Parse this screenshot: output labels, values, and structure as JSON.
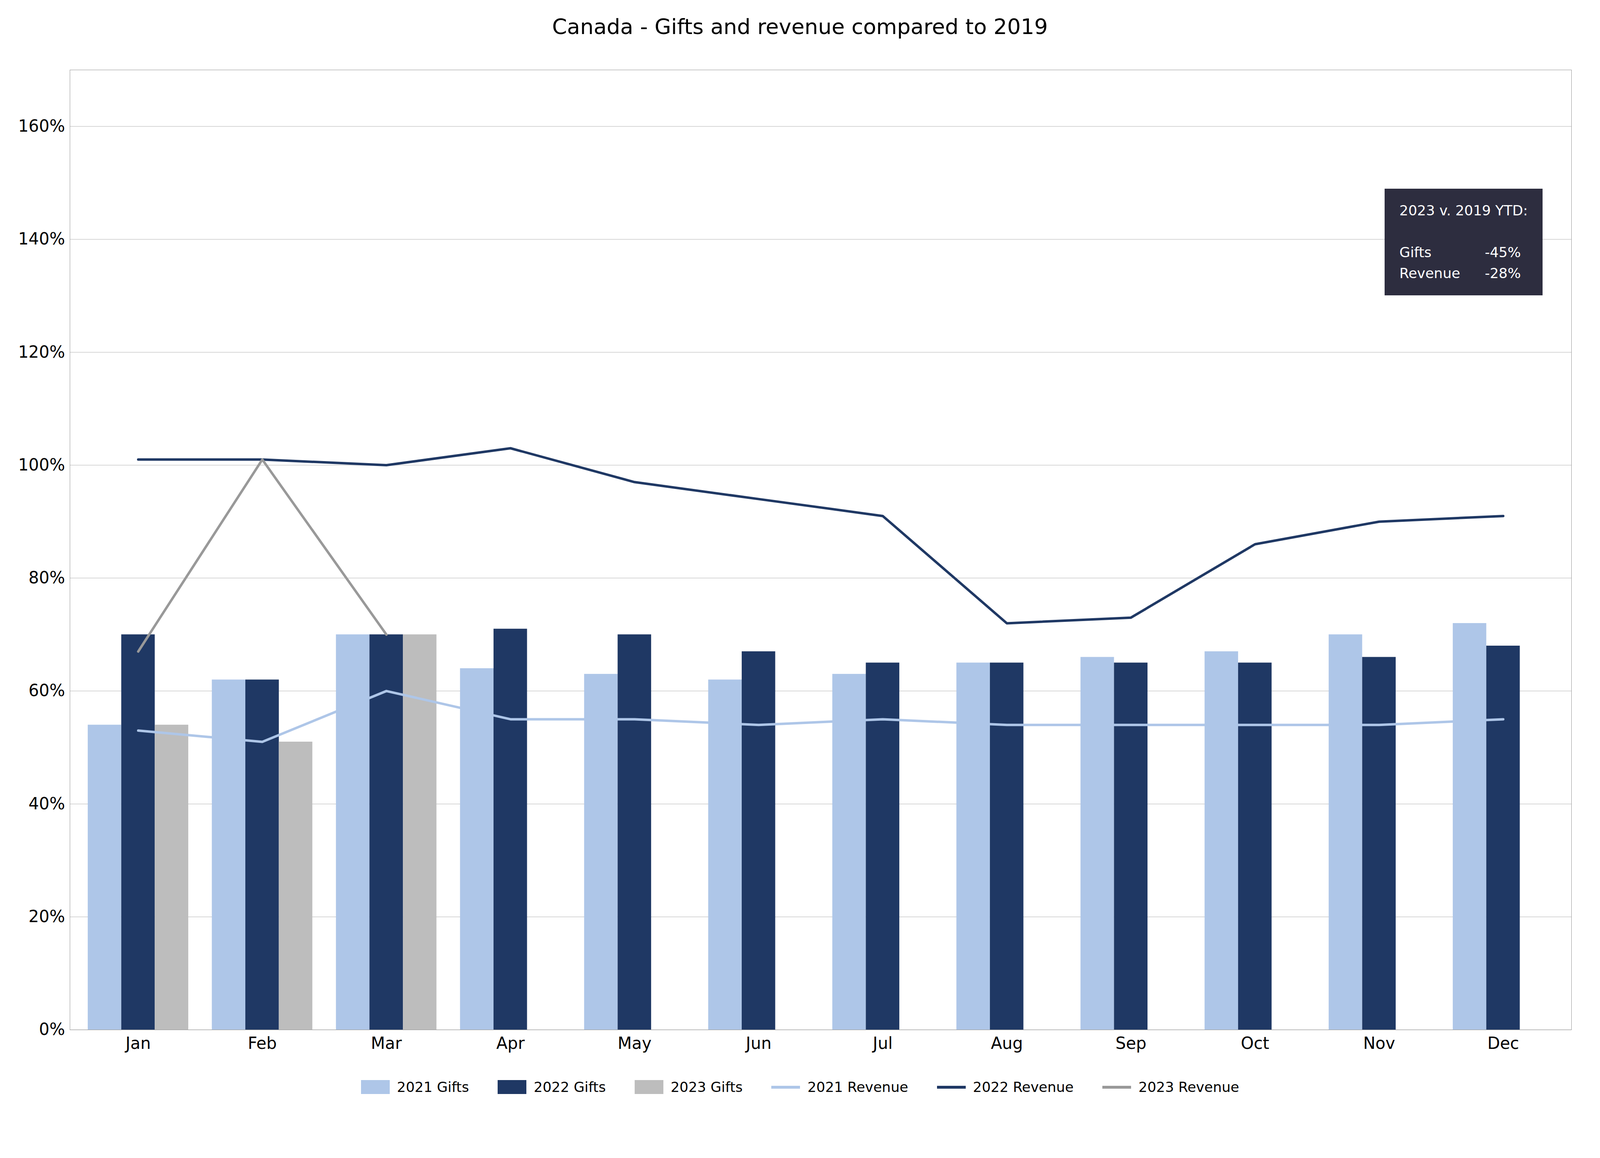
{
  "chart_data": {
    "type": "bar",
    "title": "Canada - Gifts and revenue compared to 2019",
    "categories": [
      "Jan",
      "Feb",
      "Mar",
      "Apr",
      "May",
      "Jun",
      "Jul",
      "Aug",
      "Sep",
      "Oct",
      "Nov",
      "Dec"
    ],
    "series": [
      {
        "name": "2021 Gifts",
        "type": "bar",
        "color": "#aec6e8",
        "values": [
          0.54,
          0.62,
          0.7,
          0.64,
          0.63,
          0.62,
          0.63,
          0.65,
          0.66,
          0.67,
          0.7,
          0.72
        ]
      },
      {
        "name": "2022 Gifts",
        "type": "bar",
        "color": "#1f3864",
        "values": [
          0.7,
          0.62,
          0.7,
          0.71,
          0.7,
          0.67,
          0.65,
          0.65,
          0.65,
          0.65,
          0.66,
          0.68
        ]
      },
      {
        "name": "2023 Gifts",
        "type": "bar",
        "color": "#bdbdbd",
        "values": [
          0.54,
          0.51,
          0.7,
          null,
          null,
          null,
          null,
          null,
          null,
          null,
          null,
          null
        ]
      },
      {
        "name": "2021 Revenue",
        "type": "line",
        "color": "#aec6e8",
        "values": [
          0.53,
          0.51,
          0.6,
          0.55,
          0.55,
          0.54,
          0.55,
          0.54,
          0.54,
          0.54,
          0.54,
          0.55
        ]
      },
      {
        "name": "2022 Revenue",
        "type": "line",
        "color": "#1f3864",
        "values": [
          1.01,
          1.01,
          1.0,
          1.03,
          0.97,
          0.94,
          0.91,
          0.72,
          0.73,
          0.86,
          0.9,
          0.91
        ]
      },
      {
        "name": "2023 Revenue",
        "type": "line",
        "color": "#999999",
        "values": [
          0.67,
          1.01,
          0.7,
          null,
          null,
          null,
          null,
          null,
          null,
          null,
          null,
          null
        ]
      }
    ],
    "ylim": [
      0,
      1.7
    ],
    "yticks": [
      {
        "value": 0.0,
        "label": "0%"
      },
      {
        "value": 0.2,
        "label": "20%"
      },
      {
        "value": 0.4,
        "label": "40%"
      },
      {
        "value": 0.6,
        "label": "60%"
      },
      {
        "value": 0.8,
        "label": "80%"
      },
      {
        "value": 1.0,
        "label": "100%"
      },
      {
        "value": 1.2,
        "label": "120%"
      },
      {
        "value": 1.4,
        "label": "140%"
      },
      {
        "value": 1.6,
        "label": "160%"
      }
    ],
    "grid": true,
    "legend": "bottom",
    "annotation": {
      "title": "2023 v. 2019 YTD:",
      "rows": [
        [
          "Gifts",
          "-45%"
        ],
        [
          "Revenue",
          "-28%"
        ]
      ],
      "color": "#2d2d3f"
    }
  }
}
